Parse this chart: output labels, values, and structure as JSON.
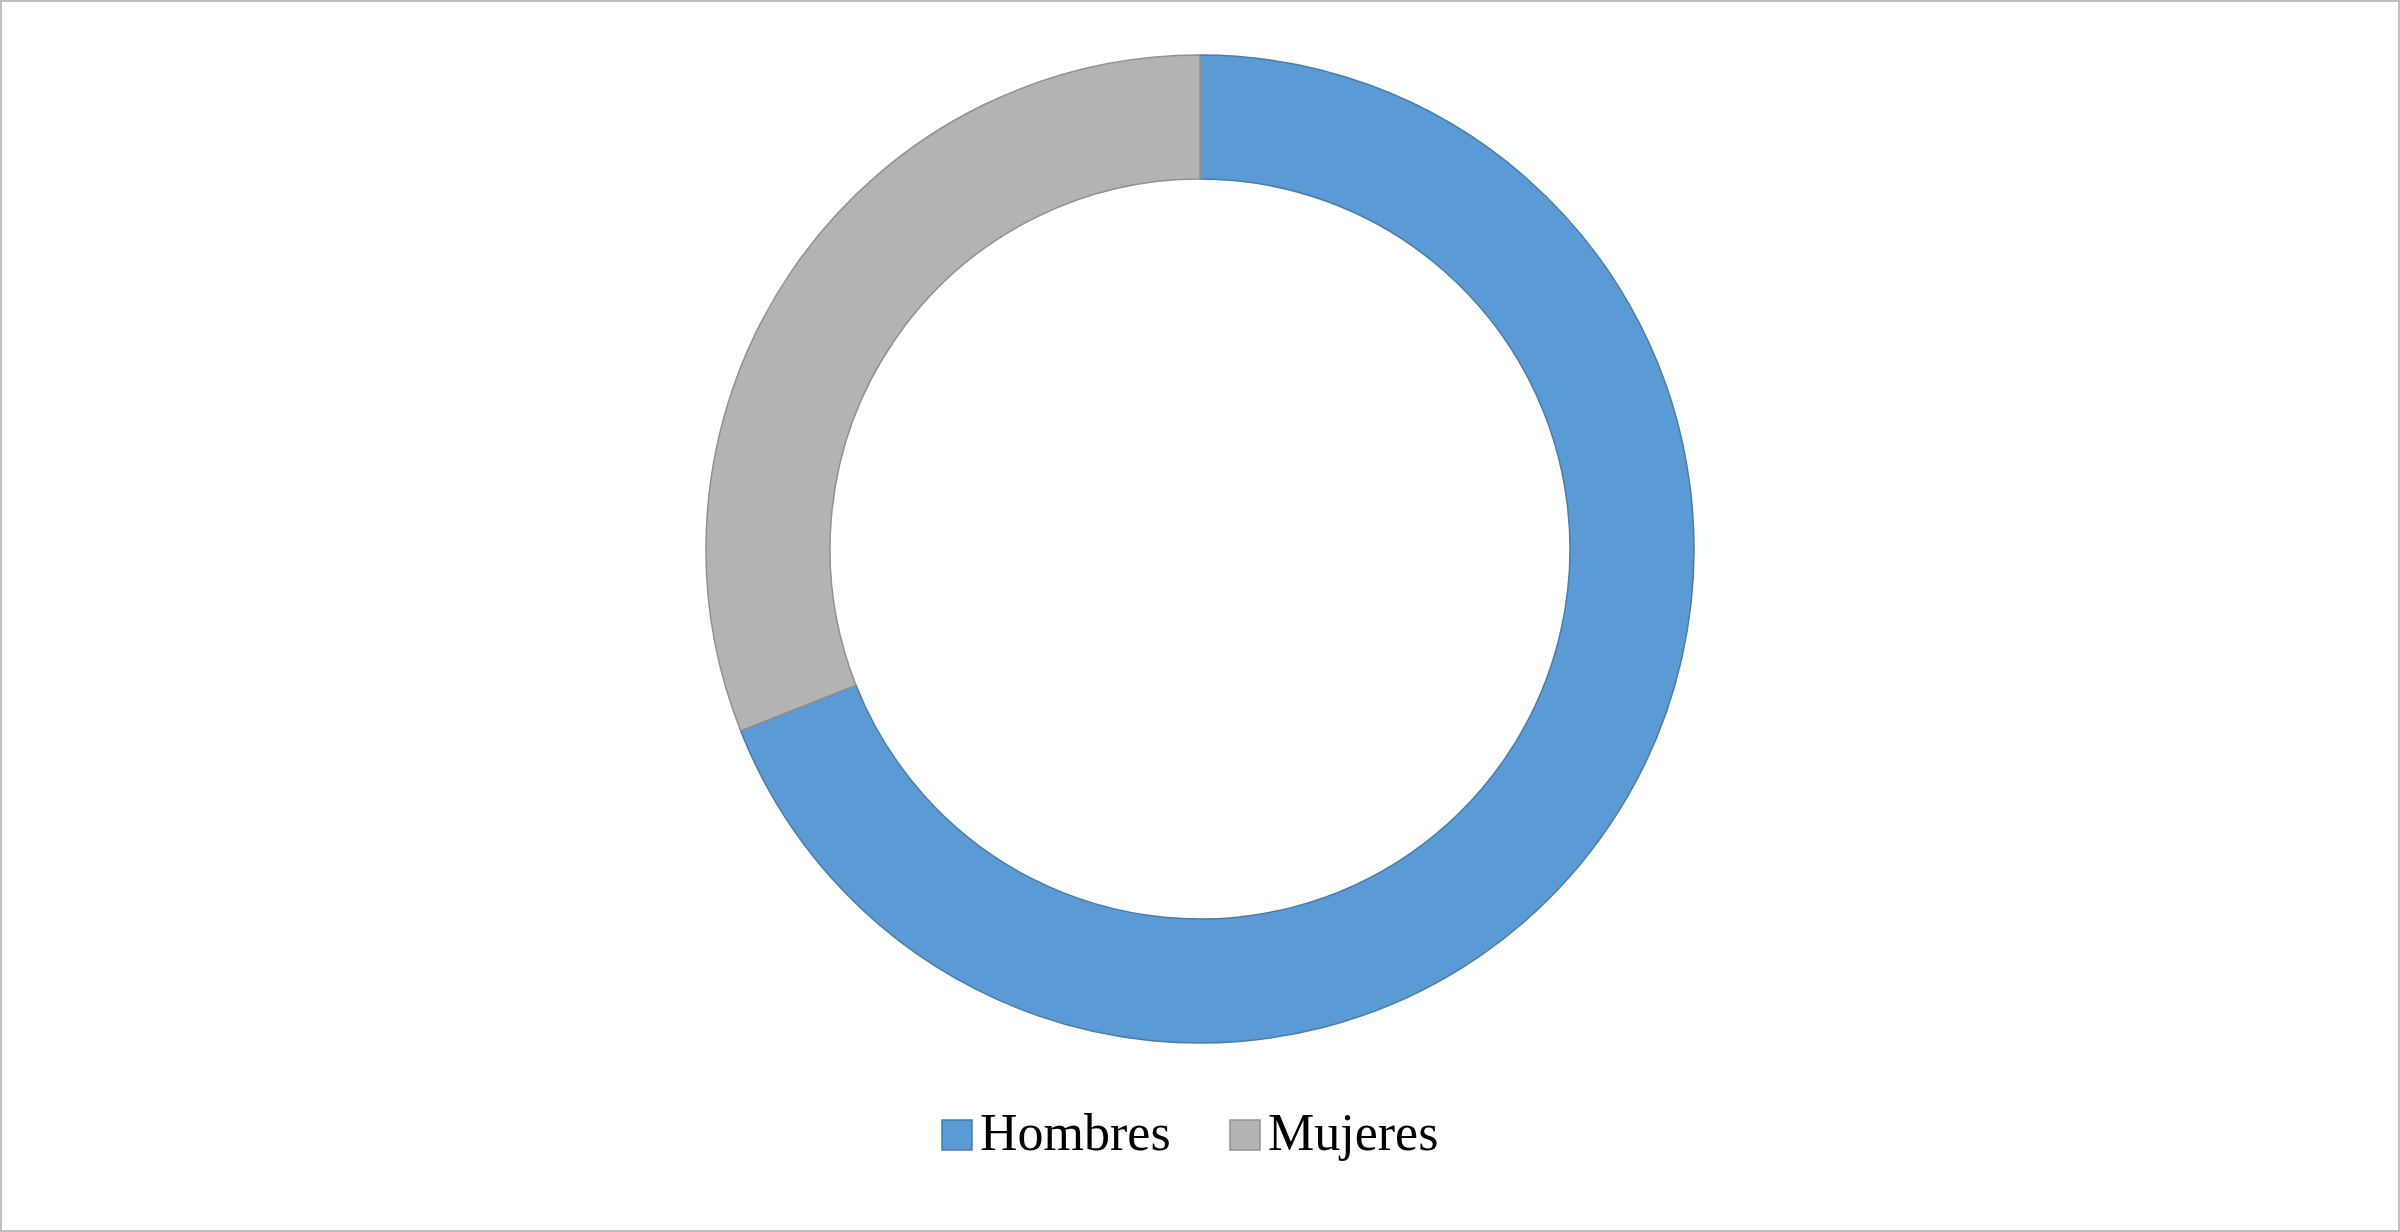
{
  "chart_data": {
    "type": "donut",
    "categories": [
      "Hombres",
      "Mujeres"
    ],
    "values": [
      69,
      31
    ],
    "colors": [
      "#5b9bd5",
      "#b3b3b3"
    ],
    "legend": "bottom"
  }
}
